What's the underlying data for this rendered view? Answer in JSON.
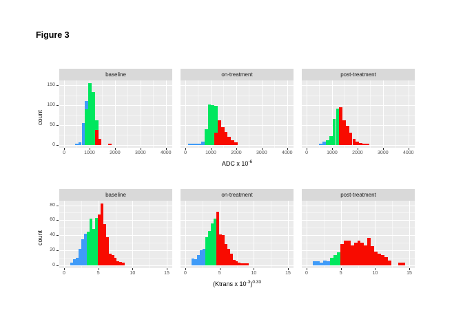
{
  "figure_label": "Figure 3",
  "colors": {
    "blue": "#3f9bf8",
    "green": "#00e75e",
    "red": "#f80b00"
  },
  "panel": {
    "bg": "#ebebeb",
    "strip_bg": "#d9d9d9",
    "grid": "#ffffff"
  },
  "chart_data": [
    {
      "type": "bar",
      "subtype": "faceted-histogram",
      "ylabel": "count",
      "xlabel_parts": [
        {
          "t": "ADC x 10"
        },
        {
          "t": "-6",
          "sup": true
        }
      ],
      "x_ticks": [
        0,
        1000,
        2000,
        3000,
        4000
      ],
      "x_minor": [
        500,
        1500,
        2500,
        3500
      ],
      "xmin": -190,
      "xmax": 4250,
      "y_ticks": [
        0,
        50,
        100,
        150
      ],
      "y_minor": [
        25,
        75,
        125
      ],
      "ymin": -7.75,
      "ymax": 162.75,
      "legend": "none",
      "facets": [
        {
          "title": "baseline",
          "bars": [
            [
              "blue",
              430,
              560,
              3
            ],
            [
              "blue",
              560,
              690,
              7
            ],
            [
              "blue",
              690,
              820,
              55
            ],
            [
              "blue",
              820,
              950,
              110
            ],
            [
              "green",
              820,
              950,
              90
            ],
            [
              "green",
              950,
              1080,
              155
            ],
            [
              "green",
              1080,
              1210,
              133
            ],
            [
              "green",
              1210,
              1340,
              62
            ],
            [
              "red",
              1210,
              1340,
              37
            ],
            [
              "red",
              1340,
              1470,
              15
            ],
            [
              "red",
              1730,
              1860,
              2
            ]
          ]
        },
        {
          "title": "on-treatment",
          "bars": [
            [
              "blue",
              100,
              230,
              2
            ],
            [
              "blue",
              230,
              360,
              2
            ],
            [
              "blue",
              360,
              490,
              3
            ],
            [
              "blue",
              490,
              620,
              3
            ],
            [
              "blue",
              620,
              750,
              8
            ],
            [
              "blue",
              750,
              880,
              16
            ],
            [
              "green",
              750,
              880,
              40
            ],
            [
              "green",
              880,
              1010,
              102
            ],
            [
              "green",
              1010,
              1140,
              101
            ],
            [
              "green",
              1140,
              1270,
              99
            ],
            [
              "red",
              1140,
              1270,
              30
            ],
            [
              "red",
              1270,
              1400,
              62
            ],
            [
              "red",
              1400,
              1530,
              45
            ],
            [
              "red",
              1530,
              1660,
              33
            ],
            [
              "red",
              1660,
              1790,
              20
            ],
            [
              "red",
              1790,
              1920,
              12
            ],
            [
              "red",
              1920,
              2050,
              6
            ]
          ]
        },
        {
          "title": "post-treatment",
          "bars": [
            [
              "blue",
              500,
              630,
              3
            ],
            [
              "blue",
              630,
              760,
              8
            ],
            [
              "blue",
              760,
              890,
              6
            ],
            [
              "green",
              760,
              890,
              12
            ],
            [
              "green",
              890,
              1020,
              22
            ],
            [
              "green",
              1020,
              1150,
              65
            ],
            [
              "green",
              1150,
              1280,
              92
            ],
            [
              "red",
              1280,
              1410,
              95
            ],
            [
              "red",
              1410,
              1540,
              62
            ],
            [
              "red",
              1540,
              1670,
              48
            ],
            [
              "red",
              1670,
              1800,
              30
            ],
            [
              "red",
              1800,
              1930,
              15
            ],
            [
              "red",
              1930,
              2060,
              8
            ],
            [
              "red",
              2060,
              2190,
              5
            ],
            [
              "red",
              2190,
              2320,
              3
            ],
            [
              "red",
              2320,
              2450,
              2
            ]
          ]
        }
      ]
    },
    {
      "type": "bar",
      "subtype": "faceted-histogram",
      "ylabel": "count",
      "xlabel_parts": [
        {
          "t": "(Ktrans x 10"
        },
        {
          "t": "-3",
          "sup": true
        },
        {
          "t": ")"
        },
        {
          "t": "0.33",
          "sup": true
        }
      ],
      "x_ticks": [
        0,
        5,
        10,
        15
      ],
      "x_minor": [
        2.5,
        7.5,
        12.5
      ],
      "xmin": -0.7,
      "xmax": 15.8,
      "y_ticks": [
        0,
        20,
        40,
        60,
        80
      ],
      "y_minor": [
        10,
        30,
        50,
        70
      ],
      "ymin": -4.1,
      "ymax": 86.1,
      "legend": "none",
      "facets": [
        {
          "title": "baseline",
          "bars": [
            [
              "blue",
              0.9,
              1.3,
              3
            ],
            [
              "blue",
              1.3,
              1.7,
              8
            ],
            [
              "blue",
              1.7,
              2.1,
              10
            ],
            [
              "blue",
              2.1,
              2.5,
              22
            ],
            [
              "blue",
              2.5,
              2.9,
              35
            ],
            [
              "blue",
              2.9,
              3.3,
              42
            ],
            [
              "green",
              3.3,
              3.7,
              45
            ],
            [
              "green",
              3.7,
              4.1,
              62
            ],
            [
              "green",
              4.1,
              4.5,
              48
            ],
            [
              "green",
              4.5,
              4.9,
              63
            ],
            [
              "red",
              4.9,
              5.3,
              68
            ],
            [
              "red",
              5.3,
              5.7,
              82
            ],
            [
              "red",
              5.7,
              6.1,
              55
            ],
            [
              "red",
              6.1,
              6.5,
              37
            ],
            [
              "red",
              6.5,
              6.9,
              15
            ],
            [
              "red",
              6.9,
              7.3,
              13
            ],
            [
              "red",
              7.3,
              7.7,
              10
            ],
            [
              "red",
              7.7,
              8.1,
              5
            ],
            [
              "red",
              8.1,
              8.5,
              4
            ],
            [
              "red",
              8.5,
              8.9,
              3
            ]
          ]
        },
        {
          "title": "on-treatment",
          "bars": [
            [
              "blue",
              0.9,
              1.3,
              9
            ],
            [
              "blue",
              1.3,
              1.7,
              8
            ],
            [
              "blue",
              1.7,
              2.1,
              13
            ],
            [
              "blue",
              2.1,
              2.5,
              20
            ],
            [
              "blue",
              2.5,
              2.9,
              22
            ],
            [
              "green",
              2.9,
              3.3,
              37
            ],
            [
              "green",
              3.3,
              3.7,
              46
            ],
            [
              "green",
              3.7,
              4.1,
              56
            ],
            [
              "green",
              4.1,
              4.5,
              62
            ],
            [
              "red",
              4.5,
              4.9,
              71
            ],
            [
              "red",
              4.9,
              5.3,
              41
            ],
            [
              "red",
              5.3,
              5.7,
              40
            ],
            [
              "red",
              5.7,
              6.1,
              28
            ],
            [
              "red",
              6.1,
              6.5,
              22
            ],
            [
              "red",
              6.5,
              6.9,
              15
            ],
            [
              "red",
              6.9,
              7.3,
              7
            ],
            [
              "red",
              7.3,
              7.7,
              5
            ],
            [
              "red",
              7.7,
              8.1,
              3
            ],
            [
              "red",
              8.1,
              8.5,
              2
            ],
            [
              "red",
              8.5,
              9.3,
              2
            ]
          ]
        },
        {
          "title": "post-treatment",
          "bars": [
            [
              "blue",
              0.9,
              1.4,
              5
            ],
            [
              "blue",
              1.4,
              1.9,
              5
            ],
            [
              "blue",
              1.9,
              2.4,
              3
            ],
            [
              "blue",
              2.4,
              2.9,
              6
            ],
            [
              "blue",
              2.9,
              3.4,
              5
            ],
            [
              "green",
              3.4,
              3.9,
              10
            ],
            [
              "green",
              3.9,
              4.4,
              13
            ],
            [
              "green",
              4.4,
              4.9,
              17
            ],
            [
              "red",
              4.9,
              5.4,
              28
            ],
            [
              "red",
              5.4,
              5.9,
              33
            ],
            [
              "red",
              5.9,
              6.4,
              33
            ],
            [
              "red",
              6.4,
              6.9,
              26
            ],
            [
              "red",
              6.9,
              7.4,
              30
            ],
            [
              "red",
              7.4,
              7.9,
              33
            ],
            [
              "red",
              7.9,
              8.4,
              30
            ],
            [
              "red",
              8.4,
              8.9,
              26
            ],
            [
              "red",
              8.9,
              9.4,
              36
            ],
            [
              "red",
              9.4,
              9.9,
              25
            ],
            [
              "red",
              9.9,
              10.4,
              18
            ],
            [
              "red",
              10.4,
              10.9,
              15
            ],
            [
              "red",
              10.9,
              11.4,
              13
            ],
            [
              "red",
              11.4,
              11.9,
              11
            ],
            [
              "red",
              11.9,
              12.4,
              6
            ],
            [
              "red",
              13.4,
              14.4,
              3
            ]
          ]
        }
      ]
    }
  ]
}
